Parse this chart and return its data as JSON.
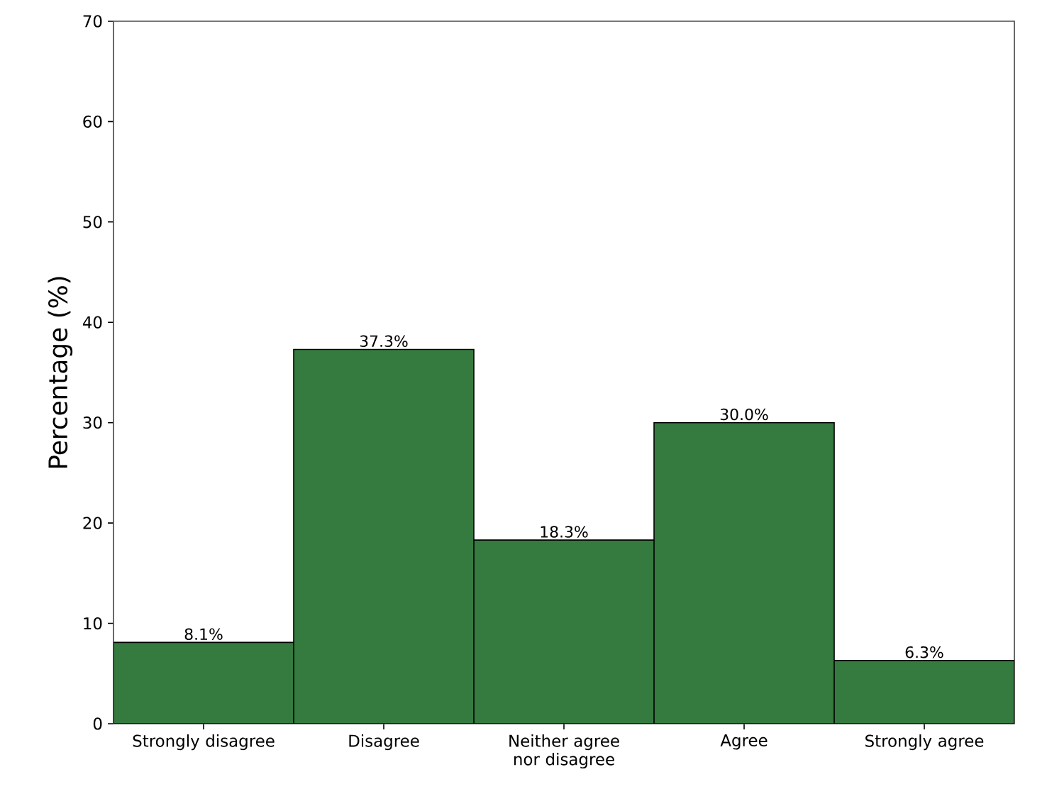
{
  "chart_data": {
    "type": "bar",
    "ylabel": "Percentage (%)",
    "categories": [
      "Strongly disagree",
      "Disagree",
      "Neither agree nor disagree",
      "Agree",
      "Strongly agree"
    ],
    "values": [
      8.1,
      37.3,
      18.3,
      30.0,
      6.3
    ],
    "value_labels": [
      "8.1%",
      "37.3%",
      "18.3%",
      "30.0%",
      "6.3%"
    ],
    "color": "#357a3e",
    "ylim": [
      0,
      70
    ],
    "yticks": [
      0,
      10,
      20,
      30,
      40,
      50,
      60,
      70
    ]
  }
}
